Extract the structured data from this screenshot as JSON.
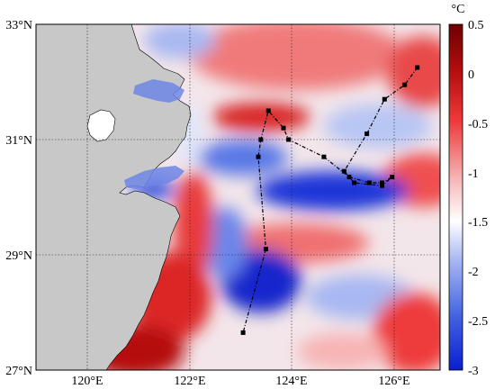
{
  "map": {
    "lon_ticks": [
      "120°E",
      "122°E",
      "124°E",
      "126°E"
    ],
    "lat_ticks": [
      "33°N",
      "31°N",
      "29°N",
      "27°N"
    ],
    "lon_values": [
      120,
      122,
      124,
      126
    ],
    "lat_values": [
      33,
      31,
      29,
      27
    ],
    "lon_range": [
      119,
      127
    ],
    "lat_range": [
      27,
      33
    ],
    "grid": true,
    "land_color": "#c8c8c8"
  },
  "colorbar": {
    "unit": "°C",
    "ticks": [
      "0.5",
      "0",
      "-0.5",
      "-1",
      "-1.5",
      "-2",
      "-2.5",
      "-3"
    ],
    "range": [
      -3,
      0.5
    ],
    "colors": [
      "#0a1fd0",
      "#5a78e6",
      "#c6d2f6",
      "#ffffff",
      "#f6c2c2",
      "#ee3a3a",
      "#b50f0f",
      "#7a0000"
    ]
  },
  "track": {
    "color": "#000000",
    "points": [
      [
        126.55,
        32.25
      ],
      [
        126.3,
        31.95
      ],
      [
        125.9,
        31.7
      ],
      [
        125.55,
        31.1
      ],
      [
        125.1,
        30.45
      ],
      [
        125.3,
        30.25
      ],
      [
        125.85,
        30.2
      ],
      [
        126.05,
        30.35
      ],
      [
        125.85,
        30.25
      ],
      [
        125.6,
        30.25
      ],
      [
        125.2,
        30.35
      ],
      [
        124.7,
        30.7
      ],
      [
        124.0,
        31.0
      ],
      [
        123.9,
        31.2
      ],
      [
        123.6,
        31.5
      ],
      [
        123.45,
        31.0
      ],
      [
        123.4,
        30.7
      ],
      [
        123.55,
        29.1
      ],
      [
        123.1,
        27.65
      ]
    ]
  }
}
